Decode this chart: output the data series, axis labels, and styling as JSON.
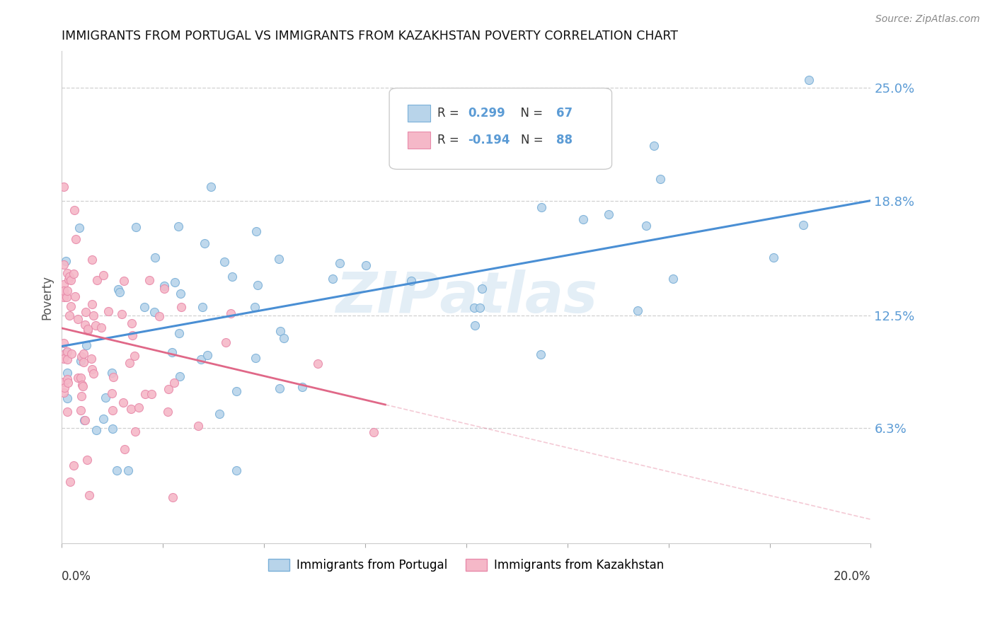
{
  "title": "IMMIGRANTS FROM PORTUGAL VS IMMIGRANTS FROM KAZAKHSTAN POVERTY CORRELATION CHART",
  "source": "Source: ZipAtlas.com",
  "ylabel": "Poverty",
  "xlim": [
    0.0,
    0.2
  ],
  "ylim": [
    0.0,
    0.27
  ],
  "portugal_R": 0.299,
  "portugal_N": 67,
  "kazakhstan_R": -0.194,
  "kazakhstan_N": 88,
  "portugal_color": "#b8d4ea",
  "kazakhstan_color": "#f5b8c8",
  "portugal_edge_color": "#7ab0d8",
  "kazakhstan_edge_color": "#e88aaa",
  "portugal_line_color": "#4a8fd4",
  "kazakhstan_line_color": "#e06888",
  "r_n_color": "#5b9bd5",
  "label_color": "#222222",
  "ytick_color": "#5b9bd5",
  "grid_color": "#d0d0d0",
  "watermark_color": "#cde0f0",
  "portugal_line_y0": 0.108,
  "portugal_line_y1": 0.188,
  "kazakhstan_line_y0": 0.118,
  "kazakhstan_line_y1": 0.076,
  "kazakhstan_line_x1": 0.08,
  "ytick_vals": [
    0.0,
    0.063,
    0.125,
    0.188,
    0.25
  ],
  "ytick_labels": [
    "",
    "6.3%",
    "12.5%",
    "18.8%",
    "25.0%"
  ]
}
